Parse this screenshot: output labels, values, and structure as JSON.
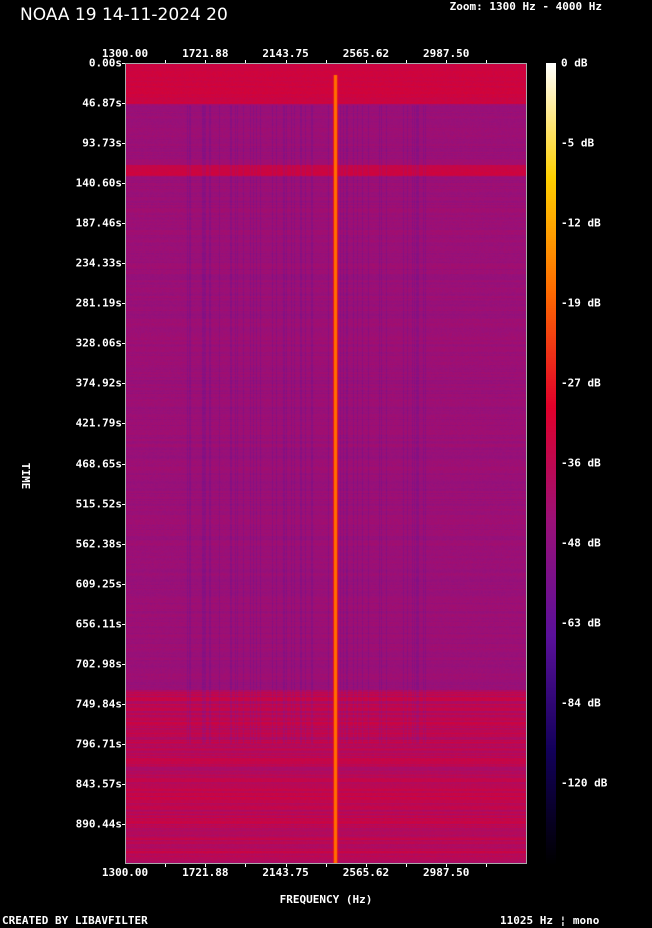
{
  "chart_data": {
    "type": "heatmap",
    "title": "NOAA 19 14-11-2024 20",
    "subtitle": "Zoom: 1300 Hz - 4000 Hz",
    "xlabel": "FREQUENCY (Hz)",
    "ylabel": "TIME",
    "x_ticks": [
      "1300.00",
      "1721.88",
      "2143.75",
      "2565.62",
      "2987.50"
    ],
    "y_ticks": [
      "0.00s",
      "46.87s",
      "93.73s",
      "140.60s",
      "187.46s",
      "234.33s",
      "281.19s",
      "328.06s",
      "374.92s",
      "421.79s",
      "468.65s",
      "515.52s",
      "562.38s",
      "609.25s",
      "656.11s",
      "702.98s",
      "749.84s",
      "796.71s",
      "843.57s",
      "890.44s"
    ],
    "colorbar_labels": [
      "0 dB",
      "-5 dB",
      "-12 dB",
      "-19 dB",
      "-27 dB",
      "-36 dB",
      "-48 dB",
      "-63 dB",
      "-84 dB",
      "-120 dB"
    ],
    "colormap": [
      "#000000",
      "#12005a",
      "#5a109a",
      "#9a1078",
      "#e0002a",
      "#ff6a00",
      "#ffd000",
      "#ffffff"
    ],
    "grid": false,
    "legend": "right colorbar"
  },
  "footer": {
    "left": "CREATED BY LIBAVFILTER",
    "right": "11025 Hz ¦ mono"
  }
}
